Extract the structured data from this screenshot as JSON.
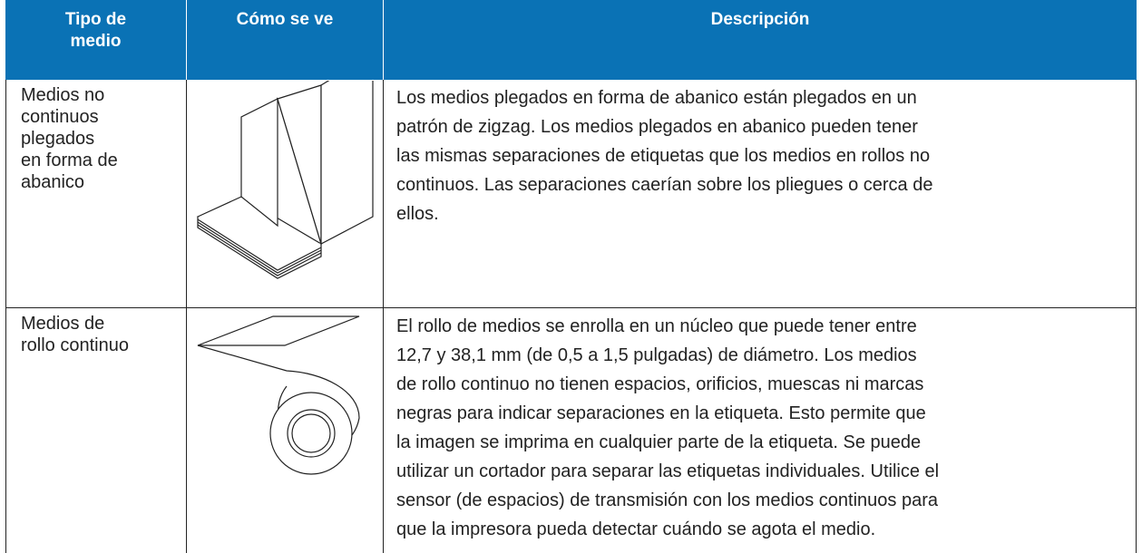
{
  "table": {
    "header": [
      [
        "Tipo de",
        "medio"
      ],
      [
        "Cómo se ve"
      ],
      [
        "Descripción"
      ]
    ],
    "rows": [
      [
        [
          "Medios no",
          "continuos",
          "plegados",
          "en forma de",
          "abanico"
        ],
        [],
        [
          "Los medios plegados en forma de abanico están plegados en un",
          "patrón de zigzag. Los medios plegados en abanico pueden tener",
          "las mismas separaciones de etiquetas que los medios en rollos no",
          "continuos. Las separaciones caerían sobre los pliegues o cerca de",
          "ellos."
        ]
      ],
      [
        [
          "Medios de",
          "rollo continuo"
        ],
        [],
        [
          "El rollo de medios se enrolla en un núcleo que puede tener entre",
          "12,7 y 38,1 mm (de 0,5 a 1,5 pulgadas) de diámetro. Los medios",
          "de rollo continuo no tienen espacios, orificios, muescas ni marcas",
          "negras para indicar separaciones en la etiqueta. Esto permite que",
          "la imagen se imprima en cualquier parte de la etiqueta. Se puede",
          "utilizar un cortador para separar las etiquetas individuales. Utilice el",
          "sensor (de espacios) de transmisión con los medios continuos para",
          "que la impresora pueda detectar cuándo se agota el medio."
        ]
      ]
    ]
  }
}
